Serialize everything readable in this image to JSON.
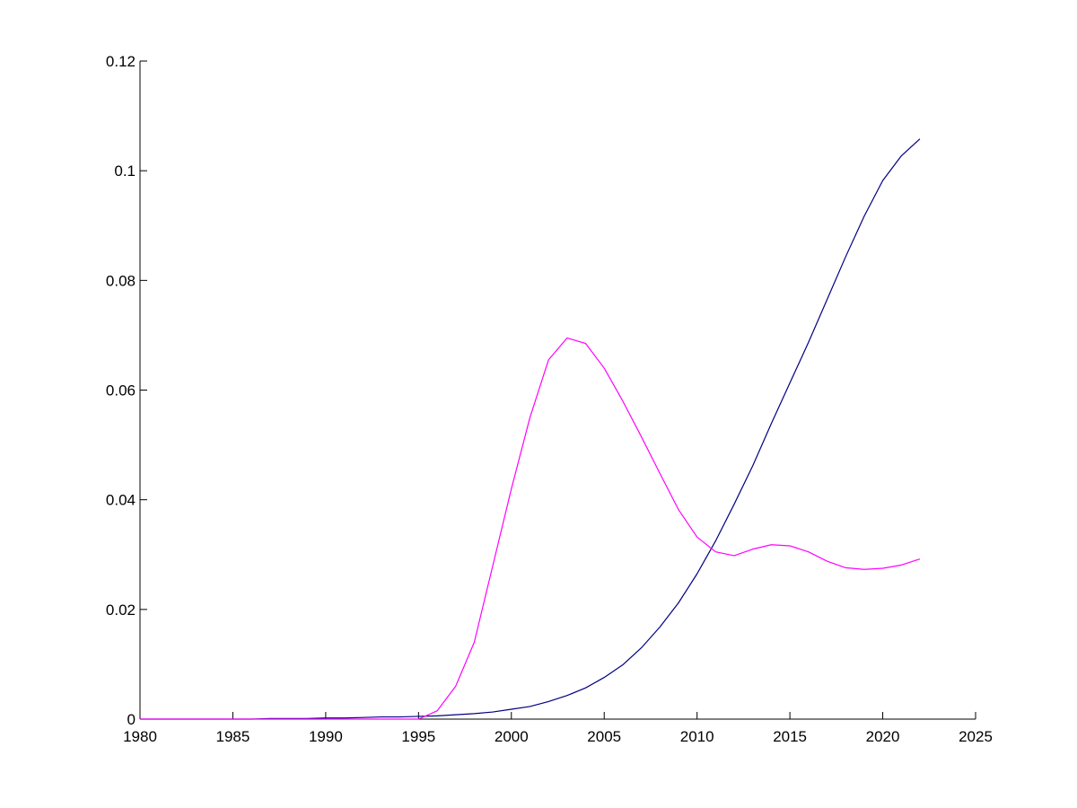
{
  "chart_data": {
    "type": "line",
    "title": "",
    "xlabel": "",
    "ylabel": "",
    "xlim": [
      1980,
      2025
    ],
    "ylim": [
      0,
      0.12
    ],
    "grid": false,
    "legend": "none",
    "x_ticks": [
      1980,
      1985,
      1990,
      1995,
      2000,
      2005,
      2010,
      2015,
      2020,
      2025
    ],
    "y_ticks": [
      0,
      0.02,
      0.04,
      0.06,
      0.08,
      0.1,
      0.12
    ],
    "x_tick_labels": [
      "1980",
      "1985",
      "1990",
      "1995",
      "2000",
      "2005",
      "2010",
      "2015",
      "2020",
      "2025"
    ],
    "y_tick_labels": [
      "0",
      "0.02",
      "0.04",
      "0.06",
      "0.08",
      "0.1",
      "0.12"
    ],
    "series": [
      {
        "color": "#00007f",
        "x": [
          1980,
          1981,
          1982,
          1983,
          1984,
          1985,
          1986,
          1987,
          1988,
          1989,
          1990,
          1991,
          1992,
          1993,
          1994,
          1995,
          1996,
          1997,
          1998,
          1999,
          2000,
          2001,
          2002,
          2003,
          2004,
          2005,
          2006,
          2007,
          2008,
          2009,
          2010,
          2011,
          2012,
          2013,
          2014,
          2015,
          2016,
          2017,
          2018,
          2019,
          2020,
          2021,
          2022
        ],
        "values": [
          0,
          0,
          0,
          0,
          0,
          0,
          0,
          0.0001,
          0.0001,
          0.0001,
          0.0002,
          0.0002,
          0.0003,
          0.0004,
          0.0004,
          0.0005,
          0.0006,
          0.0008,
          0.001,
          0.0013,
          0.0018,
          0.0023,
          0.0032,
          0.0043,
          0.0057,
          0.0076,
          0.0099,
          0.013,
          0.0168,
          0.0212,
          0.0265,
          0.0325,
          0.0392,
          0.0462,
          0.0539,
          0.0613,
          0.0687,
          0.0765,
          0.0843,
          0.0917,
          0.0982,
          0.1027,
          0.1058
        ]
      },
      {
        "color": "#ff00ff",
        "x": [
          1980,
          1981,
          1982,
          1983,
          1984,
          1985,
          1986,
          1987,
          1988,
          1989,
          1990,
          1991,
          1992,
          1993,
          1994,
          1995,
          1996,
          1997,
          1998,
          1999,
          2000,
          2001,
          2002,
          2003,
          2004,
          2005,
          2006,
          2007,
          2008,
          2009,
          2010,
          2011,
          2012,
          2013,
          2014,
          2015,
          2016,
          2017,
          2018,
          2019,
          2020,
          2021,
          2022
        ],
        "values": [
          0,
          0,
          0,
          0,
          0,
          0,
          0,
          0,
          0,
          0,
          0,
          0,
          0,
          0,
          0,
          0,
          0.0015,
          0.006,
          0.014,
          0.028,
          0.042,
          0.055,
          0.0655,
          0.0695,
          0.0685,
          0.064,
          0.058,
          0.0515,
          0.0448,
          0.0382,
          0.0332,
          0.0305,
          0.0298,
          0.031,
          0.0318,
          0.0316,
          0.0305,
          0.0288,
          0.0276,
          0.0273,
          0.0275,
          0.0281,
          0.0292
        ]
      }
    ]
  }
}
